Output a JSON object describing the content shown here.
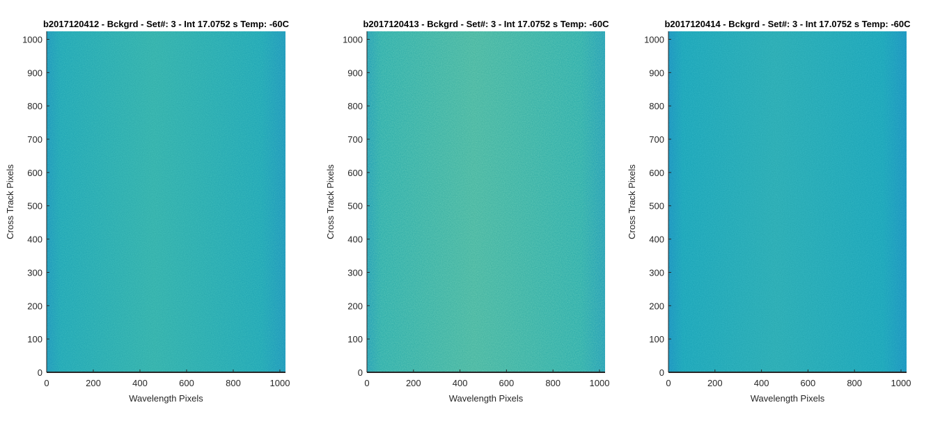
{
  "chart_data": [
    {
      "type": "heatmap",
      "title": "b2017120412 - Bckgrd - Set#: 3 - Int 17.0752 s Temp: -60C",
      "xlabel": "Wavelength Pixels",
      "ylabel": "Cross Track Pixels",
      "xlim": [
        0,
        1024
      ],
      "ylim": [
        0,
        1024
      ],
      "xticks": [
        0,
        200,
        400,
        600,
        800,
        1000
      ],
      "yticks": [
        0,
        100,
        200,
        300,
        400,
        500,
        600,
        700,
        800,
        900,
        1000
      ],
      "colors": {
        "base": "#1fa5b5",
        "edge": "#1c92bd",
        "center": "#35b0a8"
      },
      "grid": false
    },
    {
      "type": "heatmap",
      "title": "b2017120413 - Bckgrd - Set#: 3 - Int 17.0752 s Temp: -60C",
      "xlabel": "Wavelength Pixels",
      "ylabel": "Cross Track Pixels",
      "xlim": [
        0,
        1024
      ],
      "ylim": [
        0,
        1024
      ],
      "xticks": [
        0,
        200,
        400,
        600,
        800,
        1000
      ],
      "yticks": [
        0,
        100,
        200,
        300,
        400,
        500,
        600,
        700,
        800,
        900,
        1000
      ],
      "colors": {
        "base": "#2aac ab",
        "edge": "#1c98b8",
        "center": "#4ab59e"
      },
      "grid": false
    },
    {
      "type": "heatmap",
      "title": "b2017120414 - Bckgrd - Set#: 3 - Int 17.0752 s Temp: -60C",
      "xlabel": "Wavelength Pixels",
      "ylabel": "Cross Track Pixels",
      "xlim": [
        0,
        1024
      ],
      "ylim": [
        0,
        1024
      ],
      "xticks": [
        0,
        200,
        400,
        600,
        800,
        1000
      ],
      "yticks": [
        0,
        100,
        200,
        300,
        400,
        500,
        600,
        700,
        800,
        900,
        1000
      ],
      "colors": {
        "base": "#1aa4b8",
        "edge": "#1a8fc0",
        "center": "#2cabb0"
      },
      "grid": false
    }
  ]
}
